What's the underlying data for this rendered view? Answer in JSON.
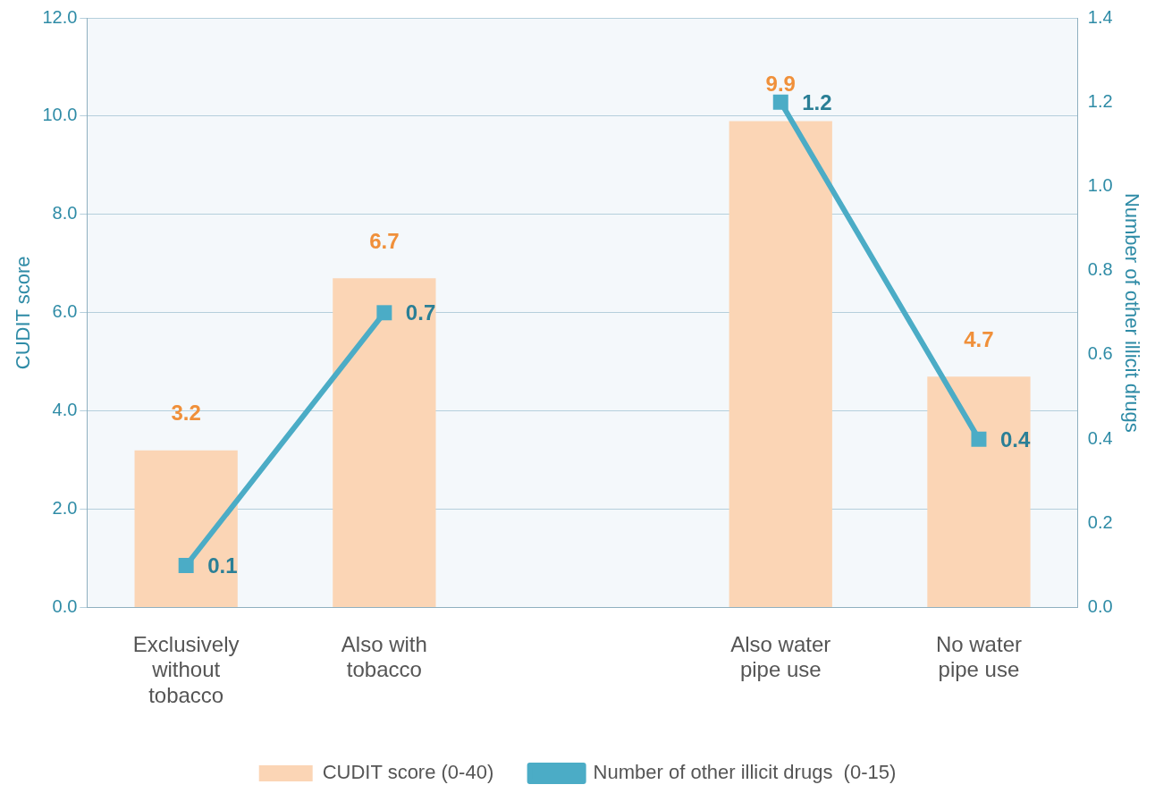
{
  "chart_data": {
    "type": "bar",
    "categories": [
      "Exclusively without tobacco",
      "Also with tobacco",
      null,
      "Also water pipe use",
      "No water pipe use"
    ],
    "series": [
      {
        "name": "CUDIT score (0-40)",
        "color": "#fbd5b5",
        "values": [
          3.2,
          6.7,
          null,
          9.9,
          4.7
        ]
      },
      {
        "name": "Number of other illicit drugs  (0-15)",
        "type": "line",
        "axis": "y2",
        "color": "#4bacc6",
        "values": [
          0.1,
          0.7,
          null,
          1.2,
          0.4
        ]
      }
    ],
    "ylabel": "CUDIT score",
    "y2label": "Number of other illicit drugs",
    "ylim": [
      0,
      12
    ],
    "yticks": [
      {
        "value": 0,
        "label": "0.0"
      },
      {
        "value": 2,
        "label": "2.0"
      },
      {
        "value": 4,
        "label": "4.0"
      },
      {
        "value": 6,
        "label": "6.0"
      },
      {
        "value": 8,
        "label": "8.0"
      },
      {
        "value": 10,
        "label": "10.0"
      },
      {
        "value": 12,
        "label": "12.0"
      }
    ],
    "y2lim": [
      0,
      1.4
    ],
    "y2ticks": [
      {
        "value": 0,
        "label": "0.0"
      },
      {
        "value": 0.2,
        "label": "0.2"
      },
      {
        "value": 0.4,
        "label": "0.4"
      },
      {
        "value": 0.6,
        "label": "0.6"
      },
      {
        "value": 0.8,
        "label": "0.8"
      },
      {
        "value": 1,
        "label": "1.0"
      },
      {
        "value": 1.2,
        "label": "1.2"
      },
      {
        "value": 1.4,
        "label": "1.4"
      }
    ],
    "grid": "y",
    "legend": "bottom",
    "marker": "square",
    "line_style": "solid",
    "data_labels": true
  }
}
